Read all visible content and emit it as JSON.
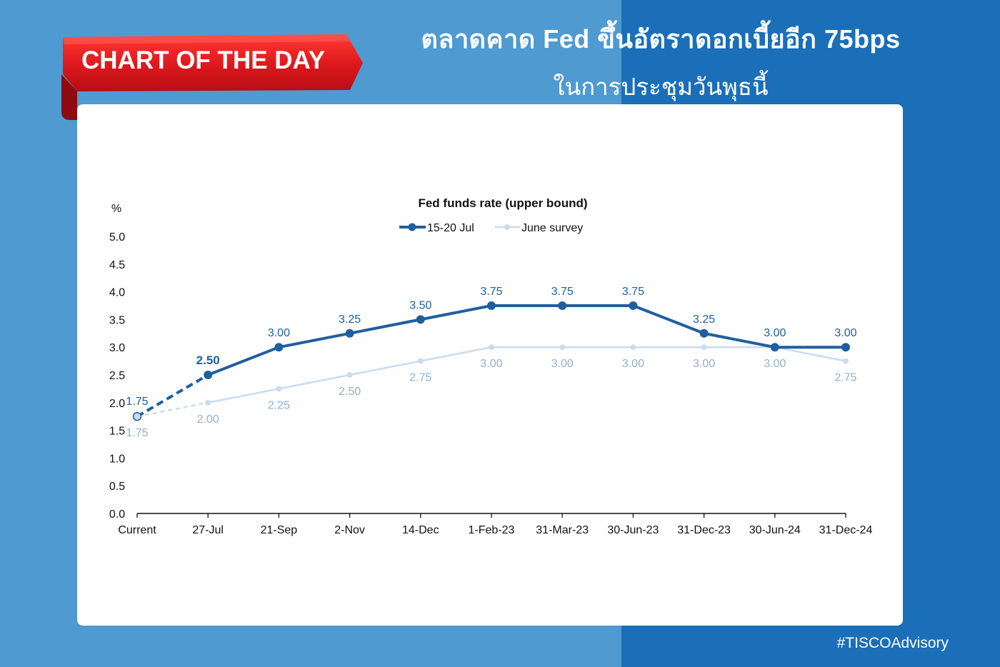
{
  "header": {
    "badge": "CHART OF THE DAY",
    "title_line1": "ตลาดคาด Fed ขึ้นอัตราดอกเบี้ยอีก 75bps",
    "title_line2": "ในการประชุมวันพุธนี้"
  },
  "footer": {
    "hashtag": "#TISCOAdvisory"
  },
  "colors": {
    "background_left": "#4f9ad0",
    "background_right": "#1a6fb8",
    "ribbon_red": "#d7141d",
    "series_dark": "#1f5fa0",
    "series_light": "#c9dcee",
    "label_light": "#8fb0d0"
  },
  "chart_data": {
    "type": "line",
    "title": "Fed funds rate (upper bound)",
    "ylabel": "%",
    "xlabel": "",
    "ylim": [
      0,
      5
    ],
    "yticks": [
      "0.0",
      "0.5",
      "1.0",
      "1.5",
      "2.0",
      "2.5",
      "3.0",
      "3.5",
      "4.0",
      "4.5",
      "5.0"
    ],
    "categories": [
      "Current",
      "27-Jul",
      "21-Sep",
      "2-Nov",
      "14-Dec",
      "1-Feb-23",
      "31-Mar-23",
      "30-Jun-23",
      "31-Dec-23",
      "30-Jun-24",
      "31-Dec-24"
    ],
    "legend_position": "top-center",
    "grid": false,
    "series": [
      {
        "name": "15-20 Jul",
        "values": [
          1.75,
          2.5,
          3.0,
          3.25,
          3.5,
          3.75,
          3.75,
          3.75,
          3.25,
          3.0,
          3.0
        ],
        "labels": [
          "1.75",
          "2.50",
          "3.00",
          "3.25",
          "3.50",
          "3.75",
          "3.75",
          "3.75",
          "3.25",
          "3.00",
          "3.00"
        ]
      },
      {
        "name": "June survey",
        "values": [
          1.75,
          2.0,
          2.25,
          2.5,
          2.75,
          3.0,
          3.0,
          3.0,
          3.0,
          3.0,
          2.75
        ],
        "labels": [
          "1.75",
          "2.00",
          "2.25",
          "2.50",
          "2.75",
          "3.00",
          "3.00",
          "3.00",
          "3.00",
          "3.00",
          "2.75"
        ]
      }
    ]
  }
}
